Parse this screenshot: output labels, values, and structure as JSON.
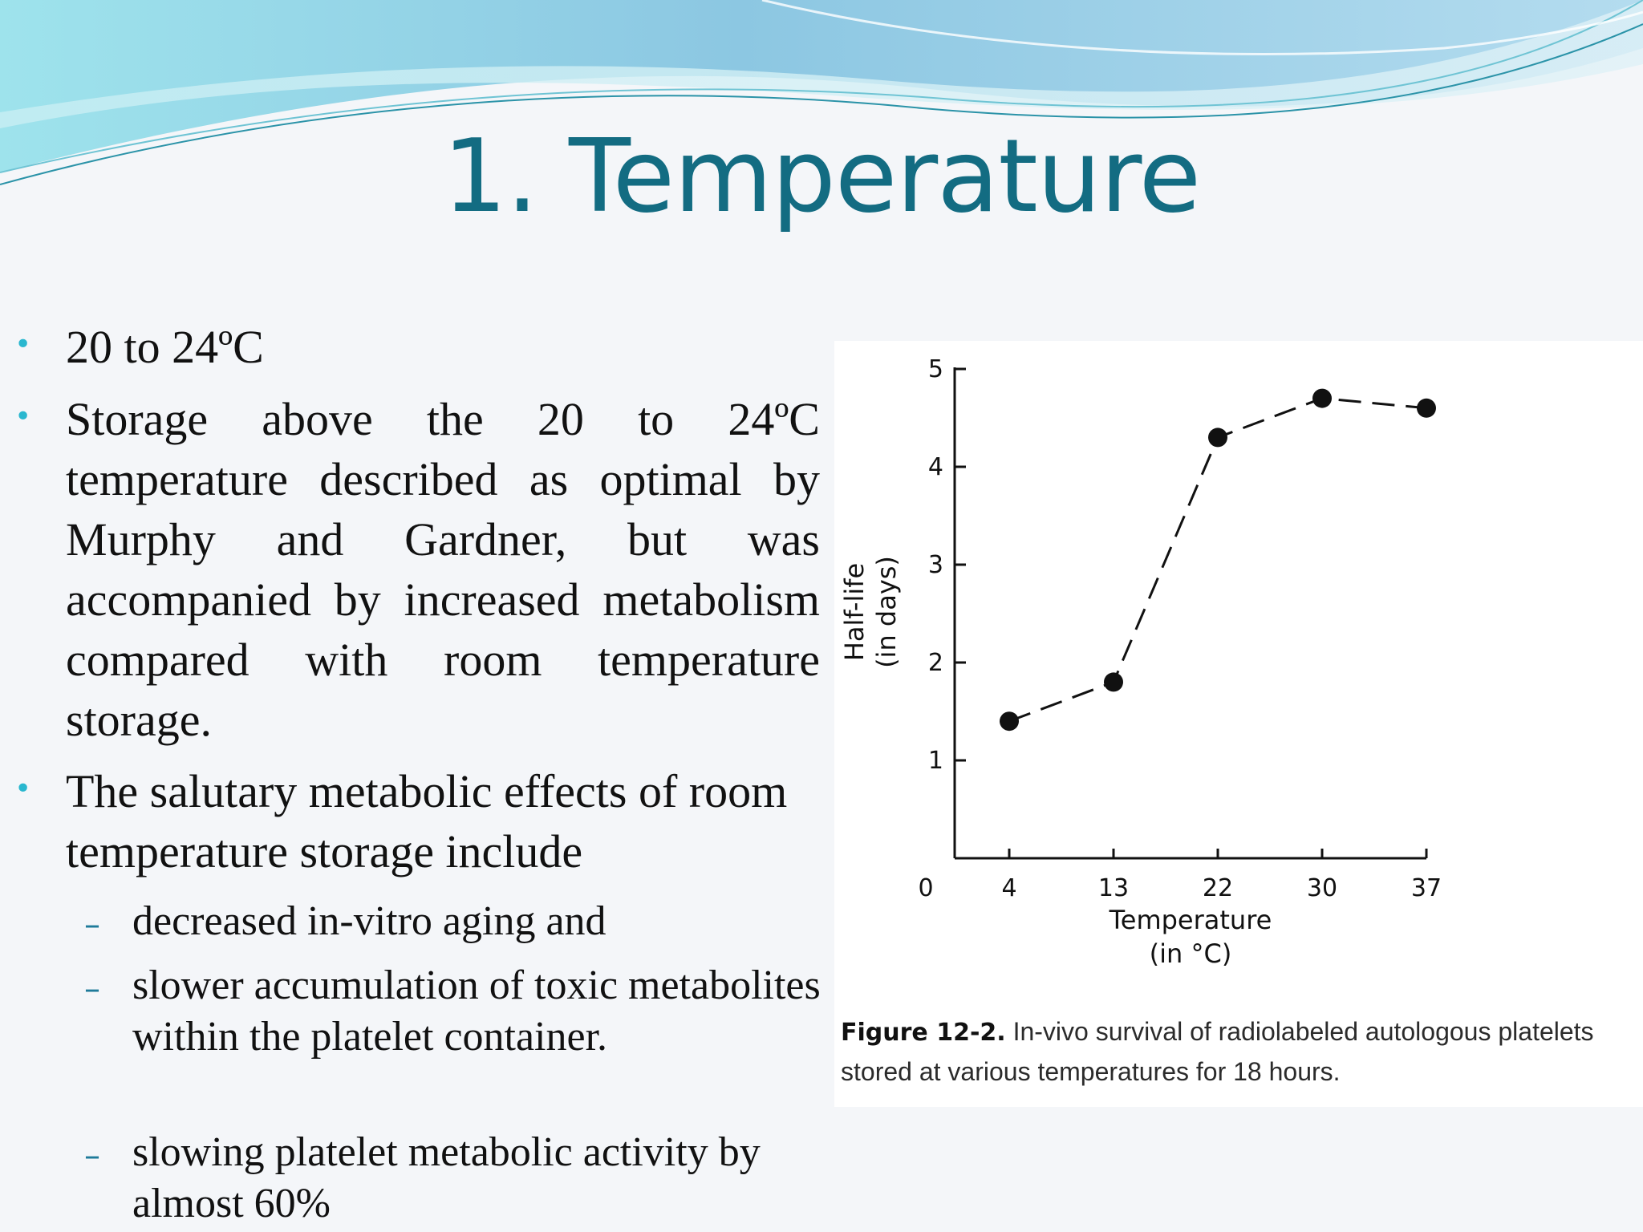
{
  "slide": {
    "title": "1. Temperature",
    "bullets": [
      "20 to 24ºC",
      "Storage above the 20 to 24ºC temperature described as optimal by Murphy and Gardner, but was accompanied by increased metabolism compared with room temperature storage.",
      "The salutary metabolic effects of room temperature storage include"
    ],
    "sub_bullets": [
      "decreased in-vitro aging and",
      "slower accumulation of toxic metabolites within the platelet container.",
      "slowing platelet metabolic activity by almost 60%"
    ],
    "bullet_glyph": "•",
    "dash_glyph": "–"
  },
  "caption": {
    "label": "Figure 12-2.",
    "text": "In-vivo survival of radiolabeled autologous platelets stored at various temperatures for 18 hours."
  },
  "chart_data": {
    "type": "line",
    "title": "",
    "x": [
      4,
      13,
      22,
      30,
      37
    ],
    "series": [
      {
        "name": "Half-life",
        "values": [
          1.4,
          1.8,
          4.3,
          4.7,
          4.6
        ]
      }
    ],
    "x_tick_labels": [
      "4",
      "13",
      "22",
      "30",
      "37"
    ],
    "x_origin_label": "0",
    "y_ticks": [
      1,
      2,
      3,
      4,
      5
    ],
    "xlabel": [
      "Temperature",
      "(in °C)"
    ],
    "ylabel": [
      "Half-life",
      "(in days)"
    ],
    "ylim": [
      0,
      5
    ],
    "line_style": "dashed",
    "grid": false
  },
  "colors": {
    "title": "#136c82",
    "bullet": "#29b7cf",
    "dash": "#1e7a9a",
    "text": "#111111"
  }
}
